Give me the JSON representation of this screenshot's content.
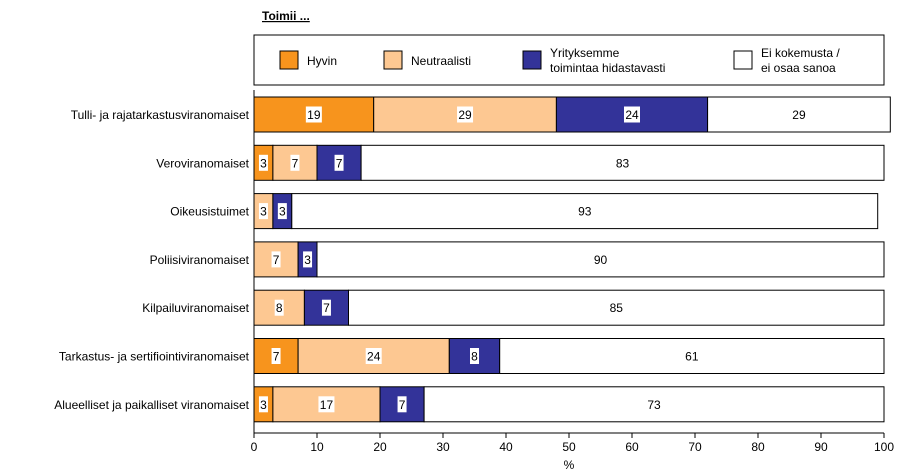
{
  "chart_data": {
    "type": "bar",
    "orientation": "horizontal",
    "stacked": true,
    "title": "Toimii ...",
    "xlabel": "%",
    "ylabel": "",
    "xlim": [
      0,
      100
    ],
    "xticks": [
      "0",
      "10",
      "20",
      "30",
      "40",
      "50",
      "60",
      "70",
      "80",
      "90",
      "100"
    ],
    "legend_position": "top",
    "categories": [
      "Tulli- ja rajatarkastusviranomaiset",
      "Veroviranomaiset",
      "Oikeusistuimet",
      "Poliisiviranomaiset",
      "Kilpailuviranomaiset",
      "Tarkastus- ja sertifiointiviranomaiset",
      "Alueelliset ja paikalliset viranomaiset"
    ],
    "series": [
      {
        "name": "Hyvin",
        "color": "#f7941d",
        "values": [
          19,
          3,
          0,
          0,
          0,
          7,
          3
        ]
      },
      {
        "name": "Neutraalisti",
        "color": "#fdc892",
        "values": [
          29,
          7,
          3,
          7,
          8,
          24,
          17
        ]
      },
      {
        "name": "Yrityksemme toimintaa hidastavasti",
        "legend_lines": [
          "Yrityksemme",
          "toimintaa hidastavasti"
        ],
        "color": "#333399",
        "values": [
          24,
          7,
          3,
          3,
          7,
          8,
          7
        ]
      },
      {
        "name": "Ei kokemusta / ei osaa sanoa",
        "legend_lines": [
          "Ei kokemusta /",
          "ei osaa sanoa"
        ],
        "color": "#ffffff",
        "values": [
          29,
          83,
          93,
          90,
          85,
          61,
          73
        ]
      }
    ]
  }
}
